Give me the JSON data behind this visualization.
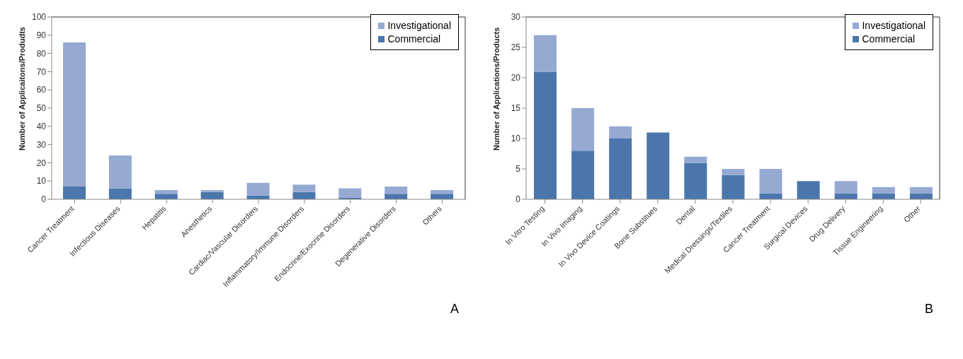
{
  "chart_data": [
    {
      "type": "bar",
      "stacked": true,
      "ylabel": "Number of Applicaitons/Produdts",
      "categories": [
        "Cancer Treatment",
        "Infectious Diseases",
        "Hepatitis",
        "Anesthetics",
        "Cardiac/Vascular Disorders",
        "Inflammatory/Immune  Disorders",
        "Endocrine/Exocrine Disorders",
        "Degenerative Disorders",
        "Others"
      ],
      "series": [
        {
          "name": "Commercial",
          "color": "#4a76ab",
          "values": [
            7,
            6,
            3,
            4,
            2,
            4,
            1,
            3,
            3
          ]
        },
        {
          "name": "Investigational",
          "color": "#95a9d2",
          "values": [
            79,
            18,
            2,
            1,
            7,
            4,
            5,
            4,
            2
          ]
        }
      ],
      "ylim": [
        0,
        100
      ],
      "yticks": [
        0,
        10,
        20,
        30,
        40,
        50,
        60,
        70,
        80,
        90,
        100
      ],
      "legend": "top right",
      "annotations": [
        "A"
      ]
    },
    {
      "type": "bar",
      "stacked": true,
      "ylabel": "Number of Applications/Products",
      "categories": [
        "In Vitro Testing",
        "In Vivo Imaging",
        "In Vivo Device Coatings",
        "Bone Substitues",
        "Dental",
        "Medical Dressings/Textiles",
        "Cancer Treatment",
        "Surgical Devices",
        "Drug Delivery",
        "Tissue Engineering",
        "Other"
      ],
      "series": [
        {
          "name": "Commercial",
          "color": "#4a76ab",
          "values": [
            21,
            8,
            10,
            11,
            6,
            4,
            1,
            3,
            1,
            1,
            1
          ]
        },
        {
          "name": "Investigational",
          "color": "#95a9d2",
          "values": [
            6,
            7,
            2,
            0,
            1,
            1,
            4,
            0,
            2,
            1,
            1
          ]
        }
      ],
      "ylim": [
        0,
        30
      ],
      "yticks": [
        0,
        5,
        10,
        15,
        20,
        25,
        30
      ],
      "legend": "top right",
      "annotations": [
        "B"
      ]
    }
  ]
}
